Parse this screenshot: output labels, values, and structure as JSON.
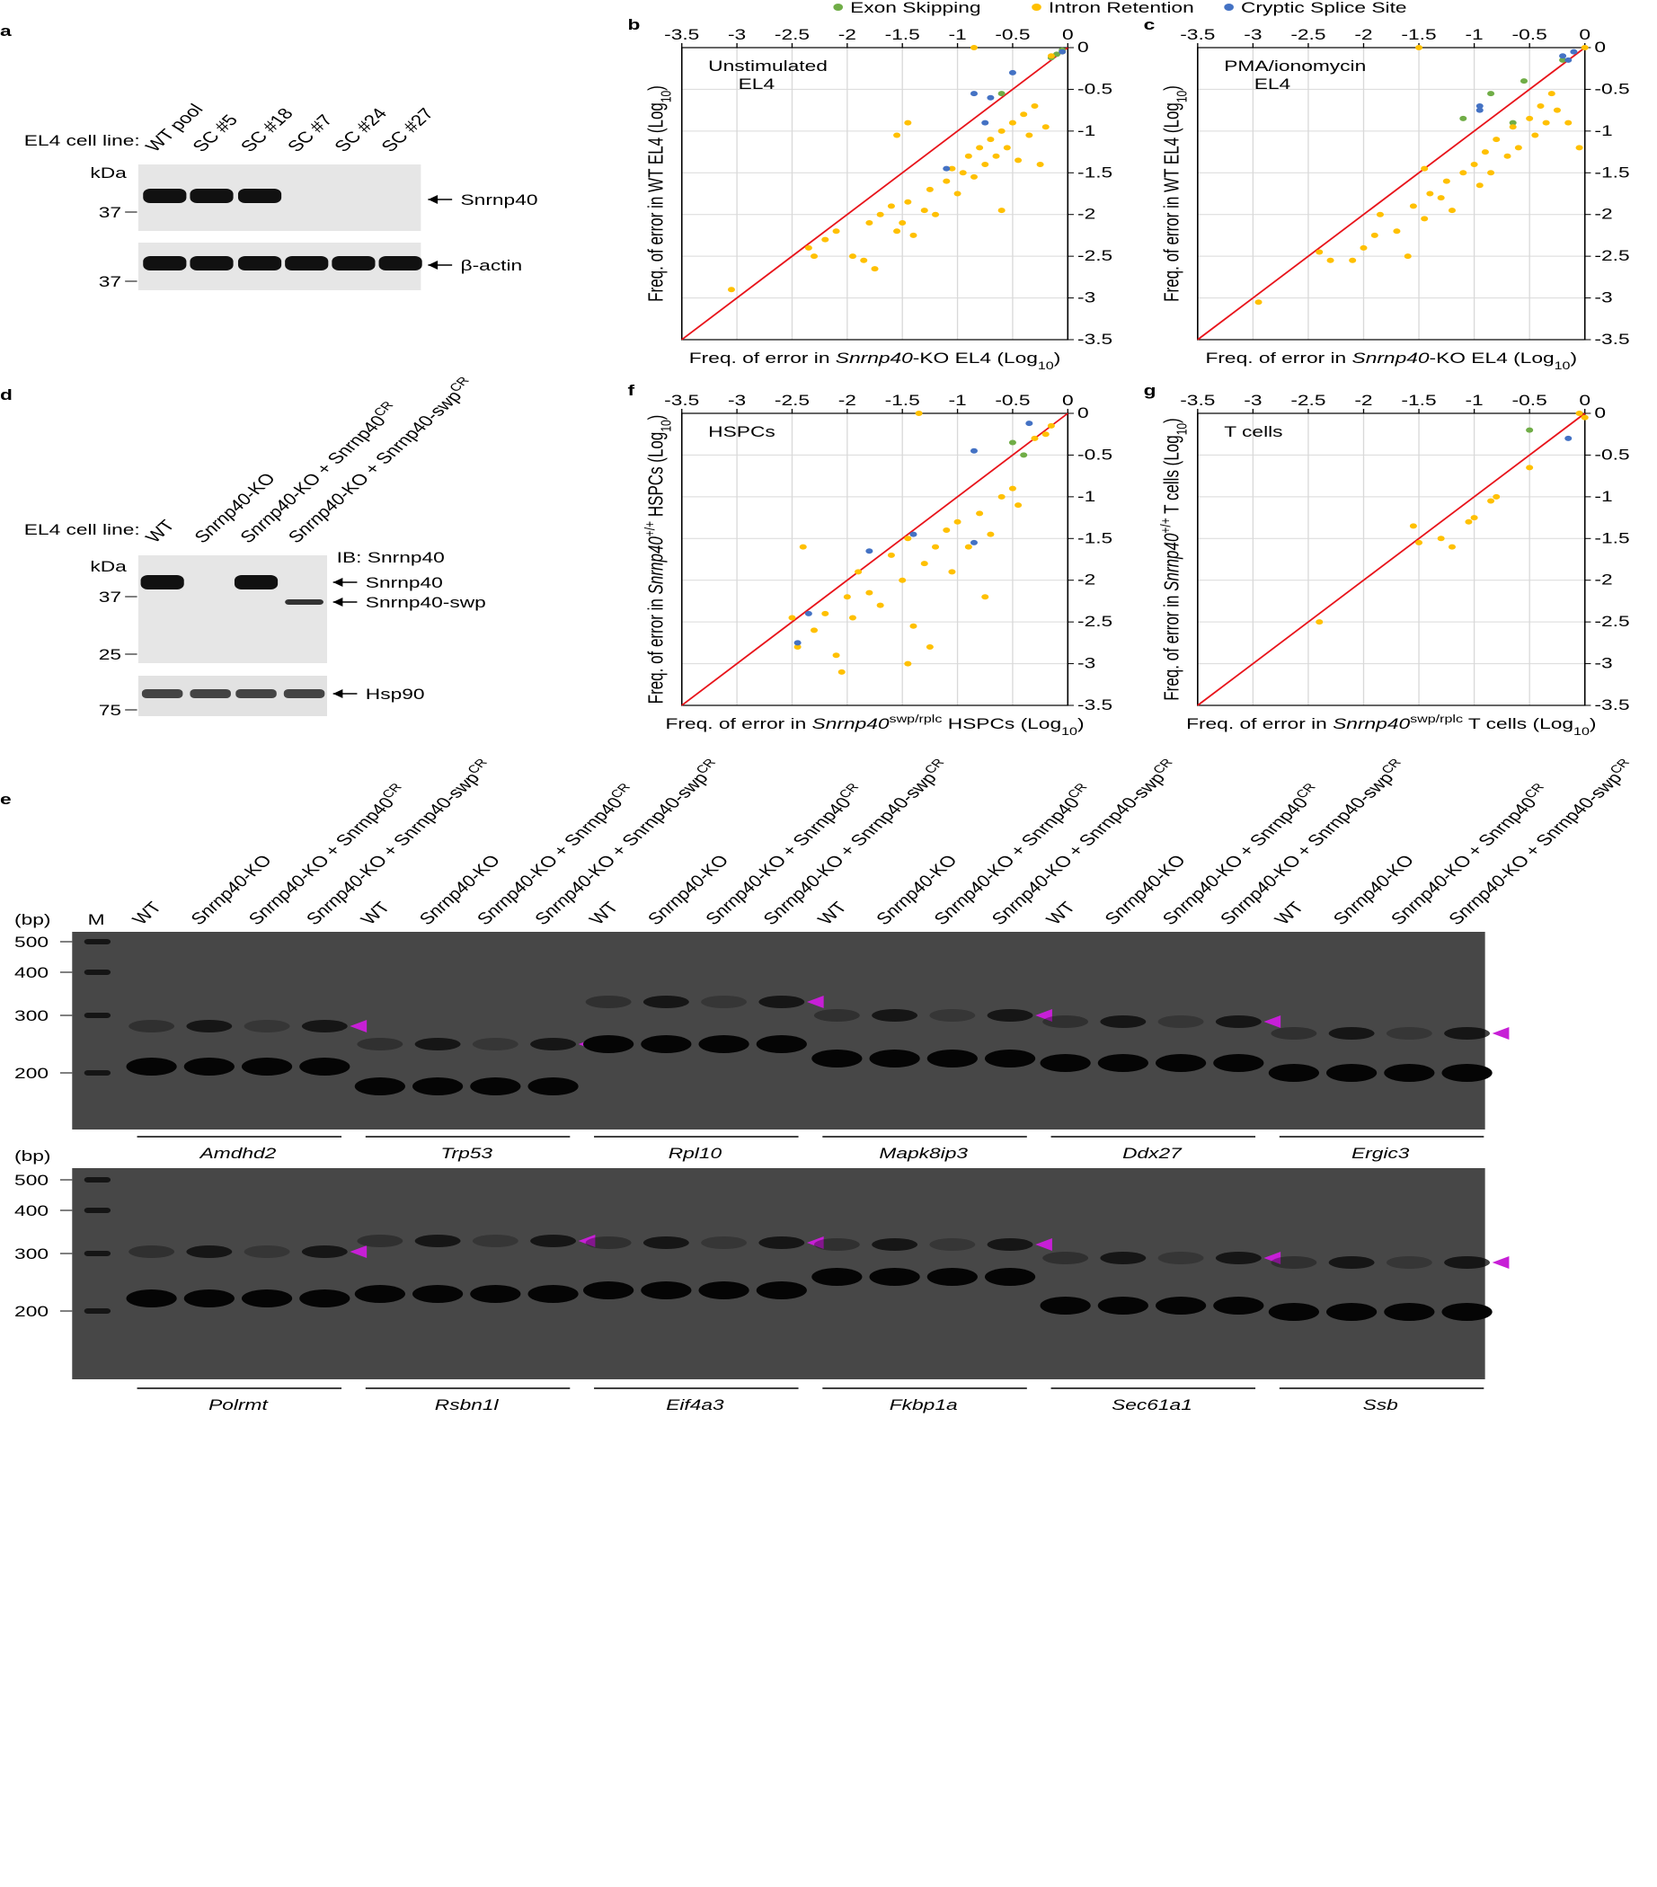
{
  "chart_data": [
    {
      "type": "scatter",
      "panel": "b",
      "annotation": [
        "Unstimulated",
        "EL4"
      ],
      "xlabel": [
        "Freq. of error in ",
        "Snrnp40",
        "-KO EL4 (Log",
        "10",
        ")"
      ],
      "ylabel": [
        "Freq. of error in WT EL4 (Log",
        "10",
        ")"
      ],
      "xlim": [
        -3.5,
        0
      ],
      "ylim": [
        -3.5,
        0
      ],
      "xticks": [
        -3.5,
        -3,
        -2.5,
        -2,
        -1.5,
        -1,
        -0.5,
        0
      ],
      "yticks": [
        -3.5,
        -3,
        -2.5,
        -2,
        -1.5,
        -1,
        -0.5,
        0
      ],
      "grid": true,
      "series": [
        {
          "name": "Exon Skipping",
          "color": "#70ad47",
          "x": [
            -0.6,
            -0.15,
            -0.1,
            -0.05
          ],
          "values": [
            -0.55,
            -0.12,
            -0.08,
            -0.03
          ]
        },
        {
          "name": "Intron Retention",
          "color": "#ffc000",
          "x": [
            -3.05,
            -2.35,
            -2.3,
            -2.2,
            -2.1,
            -1.95,
            -1.85,
            -1.75,
            -1.8,
            -1.7,
            -1.6,
            -1.55,
            -1.5,
            -1.45,
            -1.4,
            -1.3,
            -1.25,
            -1.2,
            -1.1,
            -1.05,
            -1,
            -0.95,
            -0.9,
            -0.85,
            -0.8,
            -0.75,
            -0.7,
            -0.65,
            -0.6,
            -0.55,
            -0.5,
            -0.45,
            -0.4,
            -0.35,
            -0.3,
            -0.25,
            -0.2,
            -1.55,
            -1.45,
            -0.6,
            -0.85,
            -0.15,
            -0.05
          ],
          "values": [
            -2.9,
            -2.4,
            -2.5,
            -2.3,
            -2.2,
            -2.5,
            -2.55,
            -2.65,
            -2.1,
            -2,
            -1.9,
            -2.2,
            -2.1,
            -1.85,
            -2.25,
            -1.95,
            -1.7,
            -2,
            -1.6,
            -1.45,
            -1.75,
            -1.5,
            -1.3,
            -1.55,
            -1.2,
            -1.4,
            -1.1,
            -1.3,
            -1,
            -1.2,
            -0.9,
            -1.35,
            -0.8,
            -1.05,
            -0.7,
            -1.4,
            -0.95,
            -1.05,
            -0.9,
            -1.95,
            0,
            -0.1,
            -0.05
          ]
        },
        {
          "name": "Cryptic Splice Site",
          "color": "#4472c4",
          "x": [
            -0.5,
            -0.85,
            -0.7,
            -0.75,
            -1.1,
            -0.05
          ],
          "values": [
            -0.3,
            -0.55,
            -0.6,
            -0.9,
            -1.45,
            -0.05
          ]
        }
      ]
    },
    {
      "type": "scatter",
      "panel": "c",
      "annotation": [
        "PMA/ionomycin",
        "EL4"
      ],
      "xlabel": [
        "Freq. of error in ",
        "Snrnp40",
        "-KO EL4 (Log",
        "10",
        ")"
      ],
      "ylabel": [
        "Freq. of error in WT EL4 (Log",
        "10",
        ")"
      ],
      "xlim": [
        -3.5,
        0
      ],
      "ylim": [
        -3.5,
        0
      ],
      "xticks": [
        -3.5,
        -3,
        -2.5,
        -2,
        -1.5,
        -1,
        -0.5,
        0
      ],
      "yticks": [
        -3.5,
        -3,
        -2.5,
        -2,
        -1.5,
        -1,
        -0.5,
        0
      ],
      "grid": true,
      "series": [
        {
          "color": "#70ad47",
          "x": [
            -0.85,
            -0.55,
            -1.1,
            -0.65,
            -0.2
          ],
          "values": [
            -0.55,
            -0.4,
            -0.85,
            -0.9,
            -0.15
          ]
        },
        {
          "color": "#ffc000",
          "x": [
            -2.95,
            -2.4,
            -2.3,
            -2.1,
            -2,
            -1.9,
            -1.85,
            -1.7,
            -1.6,
            -1.55,
            -1.45,
            -1.4,
            -1.3,
            -1.25,
            -1.2,
            -1.1,
            -1,
            -0.95,
            -0.9,
            -0.85,
            -0.8,
            -0.7,
            -0.65,
            -0.6,
            -0.5,
            -0.45,
            -0.4,
            -0.35,
            -0.3,
            -0.25,
            -0.15,
            -0.05,
            -1.45,
            -1.5,
            0
          ],
          "values": [
            -3.05,
            -2.45,
            -2.55,
            -2.55,
            -2.4,
            -2.25,
            -2,
            -2.2,
            -2.5,
            -1.9,
            -2.05,
            -1.75,
            -1.8,
            -1.6,
            -1.95,
            -1.5,
            -1.4,
            -1.65,
            -1.25,
            -1.5,
            -1.1,
            -1.3,
            -0.95,
            -1.2,
            -0.85,
            -1.05,
            -0.7,
            -0.9,
            -0.55,
            -0.75,
            -0.9,
            -1.2,
            -1.45,
            0,
            0
          ]
        },
        {
          "color": "#4472c4",
          "x": [
            -0.95,
            -0.95,
            -0.2,
            -0.1,
            -0.15
          ],
          "values": [
            -0.7,
            -0.75,
            -0.1,
            -0.05,
            -0.15
          ]
        }
      ]
    },
    {
      "type": "scatter",
      "panel": "f",
      "annotation": [
        "HSPCs"
      ],
      "xlabel": [
        "Freq. of error in ",
        "Snrnp40",
        "swp/rplc",
        " HSPCs (Log",
        "10",
        ")"
      ],
      "ylabel": [
        "Freq. of error in ",
        "Snrnp40",
        "+/+",
        " HSPCs (Log",
        "10",
        ")"
      ],
      "xlim": [
        -3.5,
        0
      ],
      "ylim": [
        -3.5,
        0
      ],
      "xticks": [
        -3.5,
        -3,
        -2.5,
        -2,
        -1.5,
        -1,
        -0.5,
        0
      ],
      "yticks": [
        -3.5,
        -3,
        -2.5,
        -2,
        -1.5,
        -1,
        -0.5,
        0
      ],
      "grid": true,
      "series": [
        {
          "color": "#70ad47",
          "x": [
            -0.5,
            -0.4
          ],
          "values": [
            -0.35,
            -0.5
          ]
        },
        {
          "color": "#ffc000",
          "x": [
            -2.5,
            -2.4,
            -2.45,
            -2.3,
            -2.2,
            -2.1,
            -2.05,
            -2,
            -1.95,
            -1.9,
            -1.8,
            -1.7,
            -1.6,
            -1.5,
            -1.45,
            -1.4,
            -1.3,
            -1.25,
            -1.2,
            -1.1,
            -1.05,
            -1,
            -0.9,
            -0.8,
            -0.75,
            -0.7,
            -0.6,
            -0.5,
            -0.45,
            -0.3,
            -0.2,
            -0.15,
            -1.45,
            -1.35
          ],
          "values": [
            -2.45,
            -1.6,
            -2.8,
            -2.6,
            -2.4,
            -2.9,
            -3.1,
            -2.2,
            -2.45,
            -1.9,
            -2.15,
            -2.3,
            -1.7,
            -2,
            -1.5,
            -2.55,
            -1.8,
            -2.8,
            -1.6,
            -1.4,
            -1.9,
            -1.3,
            -1.6,
            -1.2,
            -2.2,
            -1.45,
            -1,
            -0.9,
            -1.1,
            -0.3,
            -0.25,
            -0.15,
            -3,
            0
          ]
        },
        {
          "color": "#4472c4",
          "x": [
            -1.8,
            -0.85,
            -0.35,
            -2.35,
            -2.45,
            -1.4,
            -0.85
          ],
          "values": [
            -1.65,
            -0.45,
            -0.12,
            -2.4,
            -2.75,
            -1.45,
            -1.55
          ]
        }
      ]
    },
    {
      "type": "scatter",
      "panel": "g",
      "annotation": [
        "T cells"
      ],
      "xlabel": [
        "Freq. of error in ",
        "Snrnp40",
        "swp/rplc",
        " T cells (Log",
        "10",
        ")"
      ],
      "ylabel": [
        "Freq. of error in ",
        "Snrnp40",
        "+/+",
        " T cells (Log",
        "10",
        ")"
      ],
      "xlim": [
        -3.5,
        0
      ],
      "ylim": [
        -3.5,
        0
      ],
      "xticks": [
        -3.5,
        -3,
        -2.5,
        -2,
        -1.5,
        -1,
        -0.5,
        0
      ],
      "yticks": [
        -3.5,
        -3,
        -2.5,
        -2,
        -1.5,
        -1,
        -0.5,
        0
      ],
      "grid": true,
      "series": [
        {
          "color": "#70ad47",
          "x": [
            -0.5
          ],
          "values": [
            -0.2
          ]
        },
        {
          "color": "#ffc000",
          "x": [
            -2.4,
            -1.55,
            -1.5,
            -1.3,
            -1.2,
            -1.05,
            -1,
            -0.85,
            -0.8,
            -0.5,
            -0.05,
            0
          ],
          "values": [
            -2.5,
            -1.35,
            -1.55,
            -1.5,
            -1.6,
            -1.3,
            -1.25,
            -1.05,
            -1,
            -0.65,
            0,
            -0.05
          ]
        },
        {
          "color": "#4472c4",
          "x": [
            -0.15
          ],
          "values": [
            -0.3
          ]
        }
      ]
    }
  ],
  "blot_a": {
    "panel": "a",
    "cell_line_label": "EL4 cell line:",
    "lanes": [
      [
        "WT pool"
      ],
      [
        "SC #5"
      ],
      [
        "SC #18"
      ],
      [
        "SC #7"
      ],
      [
        "SC #24"
      ],
      [
        "SC #27"
      ]
    ],
    "kda_label": "kDa",
    "markers": [
      37,
      37
    ],
    "bands": [
      "Snrnp40",
      "β-actin"
    ]
  },
  "blot_d": {
    "panel": "d",
    "cell_line_label": "EL4 cell line:",
    "lanes": [
      [
        "WT"
      ],
      [
        "Snrnp40",
        "-KO"
      ],
      [
        "Snrnp40",
        "-KO + Snrnp40",
        "CR"
      ],
      [
        "Snrnp40",
        "-KO + Snrnp40-swp",
        "CR"
      ]
    ],
    "kda_label": "kDa",
    "ib_label": "IB: Snrnp40",
    "markers": [
      37,
      25,
      75
    ],
    "bands": [
      "Snrnp40",
      "Snrnp40-swp",
      "Hsp90"
    ]
  },
  "gel_e": {
    "panel": "e",
    "bp_label": "(bp)",
    "marker_lane": "M",
    "lanes": [
      [
        "WT"
      ],
      [
        "Snrnp40",
        "-KO"
      ],
      [
        "Snrnp40",
        "-KO + Snrnp40",
        "CR"
      ],
      [
        "Snrnp40",
        "-KO + Snrnp40-swp",
        "CR"
      ]
    ],
    "markers": [
      500,
      400,
      300,
      200
    ],
    "genes_top": [
      "Amdhd2",
      "Trp53",
      "Rpl10",
      "Mapk8ip3",
      "Ddx27",
      "Ergic3"
    ],
    "genes_bottom": [
      "Polrmt",
      "Rsbn1l",
      "Eif4a3",
      "Fkbp1a",
      "Sec61a1",
      "Ssb"
    ]
  }
}
